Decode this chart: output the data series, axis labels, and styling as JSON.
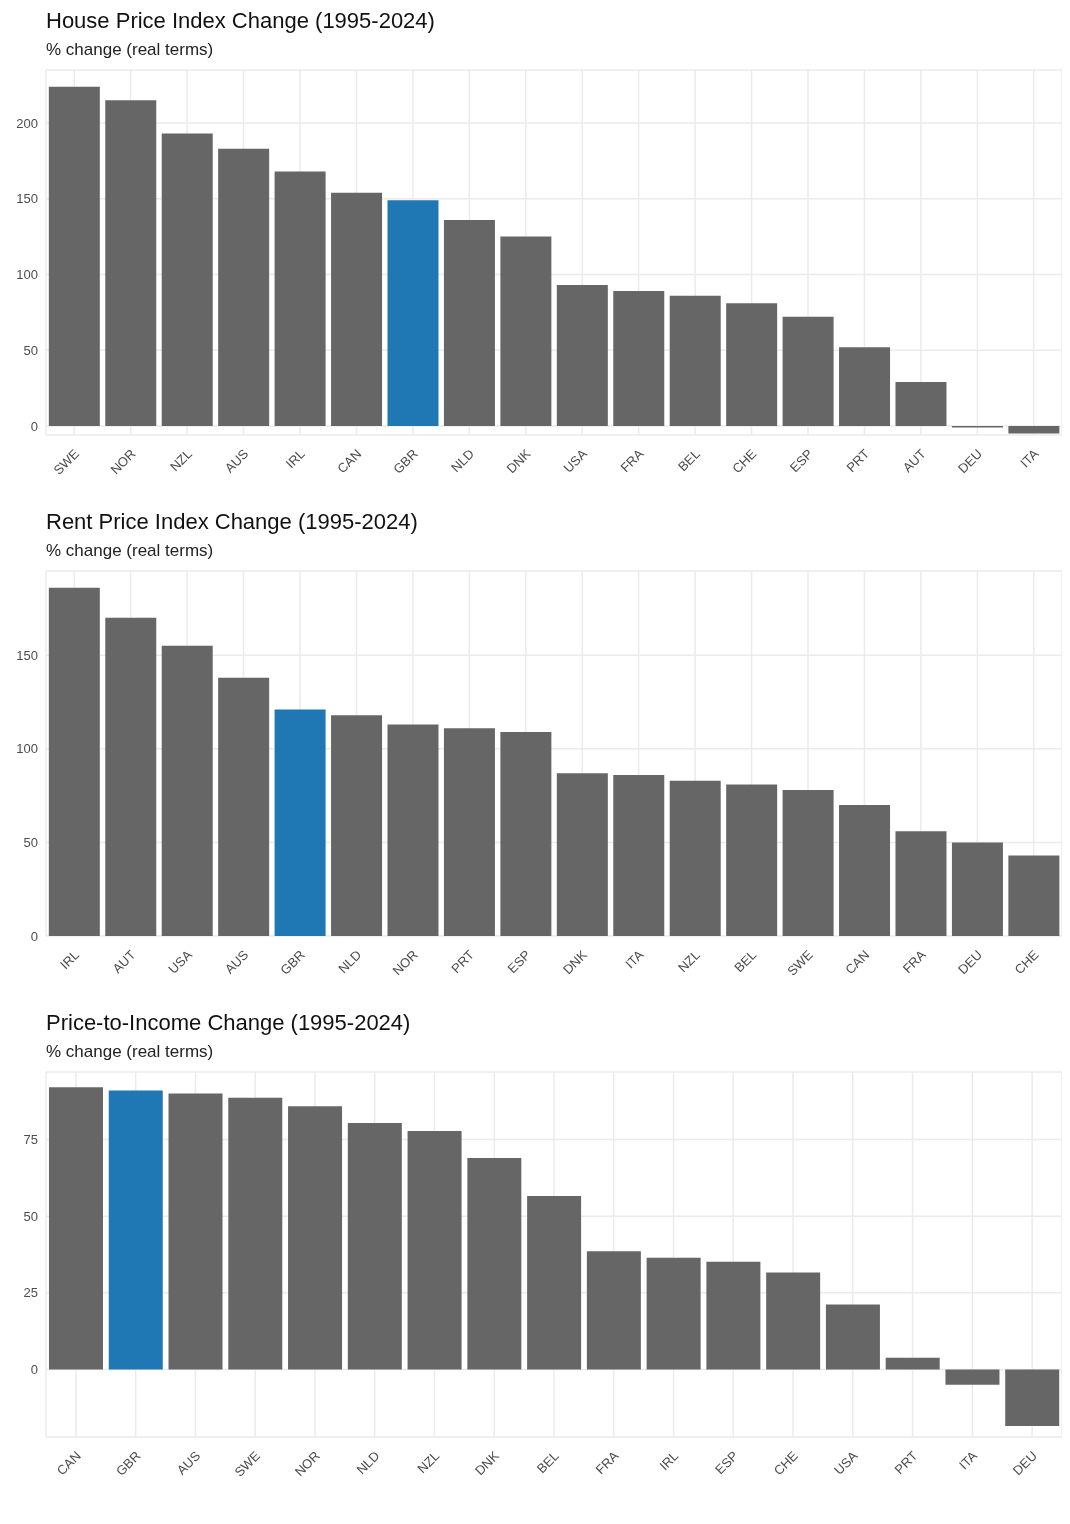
{
  "chart_data": [
    {
      "type": "bar",
      "title": "House Price Index Change (1995-2024)",
      "subtitle": "% change (real terms)",
      "categories": [
        "SWE",
        "NOR",
        "NZL",
        "AUS",
        "IRL",
        "CAN",
        "GBR",
        "NLD",
        "DNK",
        "USA",
        "FRA",
        "BEL",
        "CHE",
        "ESP",
        "PRT",
        "AUT",
        "DEU",
        "ITA"
      ],
      "values": [
        224,
        215,
        193,
        183,
        168,
        154,
        149,
        136,
        125,
        93,
        89,
        86,
        81,
        72,
        52,
        29,
        -1,
        -5
      ],
      "colors": [
        "#666666",
        "#666666",
        "#666666",
        "#666666",
        "#666666",
        "#666666",
        "#1f78b4",
        "#666666",
        "#666666",
        "#666666",
        "#666666",
        "#666666",
        "#666666",
        "#666666",
        "#666666",
        "#666666",
        "#666666",
        "#666666"
      ],
      "ylim": [
        -6,
        235
      ],
      "yticks": [
        0,
        50,
        100,
        150,
        200
      ],
      "grid": true
    },
    {
      "type": "bar",
      "title": "Rent Price Index Change (1995-2024)",
      "subtitle": "% change (real terms)",
      "categories": [
        "IRL",
        "AUT",
        "USA",
        "AUS",
        "GBR",
        "NLD",
        "NOR",
        "PRT",
        "ESP",
        "DNK",
        "ITA",
        "NZL",
        "BEL",
        "SWE",
        "CAN",
        "FRA",
        "DEU",
        "CHE"
      ],
      "values": [
        186,
        170,
        155,
        138,
        121,
        118,
        113,
        111,
        109,
        87,
        86,
        83,
        81,
        78,
        70,
        56,
        50,
        43
      ],
      "colors": [
        "#666666",
        "#666666",
        "#666666",
        "#666666",
        "#1f78b4",
        "#666666",
        "#666666",
        "#666666",
        "#666666",
        "#666666",
        "#666666",
        "#666666",
        "#666666",
        "#666666",
        "#666666",
        "#666666",
        "#666666",
        "#666666"
      ],
      "ylim": [
        0,
        195
      ],
      "yticks": [
        0,
        50,
        100,
        150
      ],
      "grid": true
    },
    {
      "type": "bar",
      "title": "Price-to-Income Change (1995-2024)",
      "subtitle": "% change (real terms)",
      "categories": [
        "CAN",
        "GBR",
        "AUS",
        "SWE",
        "NOR",
        "NLD",
        "NZL",
        "DNK",
        "BEL",
        "FRA",
        "IRL",
        "ESP",
        "CHE",
        "USA",
        "PRT",
        "ITA",
        "DEU"
      ],
      "values": [
        92,
        91,
        90,
        88.6,
        85.8,
        80.4,
        77.8,
        69,
        56.6,
        38.6,
        36.4,
        35.1,
        31.6,
        21.2,
        3.8,
        -5,
        -18.4
      ],
      "colors": [
        "#666666",
        "#1f78b4",
        "#666666",
        "#666666",
        "#666666",
        "#666666",
        "#666666",
        "#666666",
        "#666666",
        "#666666",
        "#666666",
        "#666666",
        "#666666",
        "#666666",
        "#666666",
        "#666666",
        "#666666"
      ],
      "ylim": [
        -22,
        97
      ],
      "yticks": [
        0,
        25,
        50,
        75
      ],
      "grid": true
    }
  ]
}
